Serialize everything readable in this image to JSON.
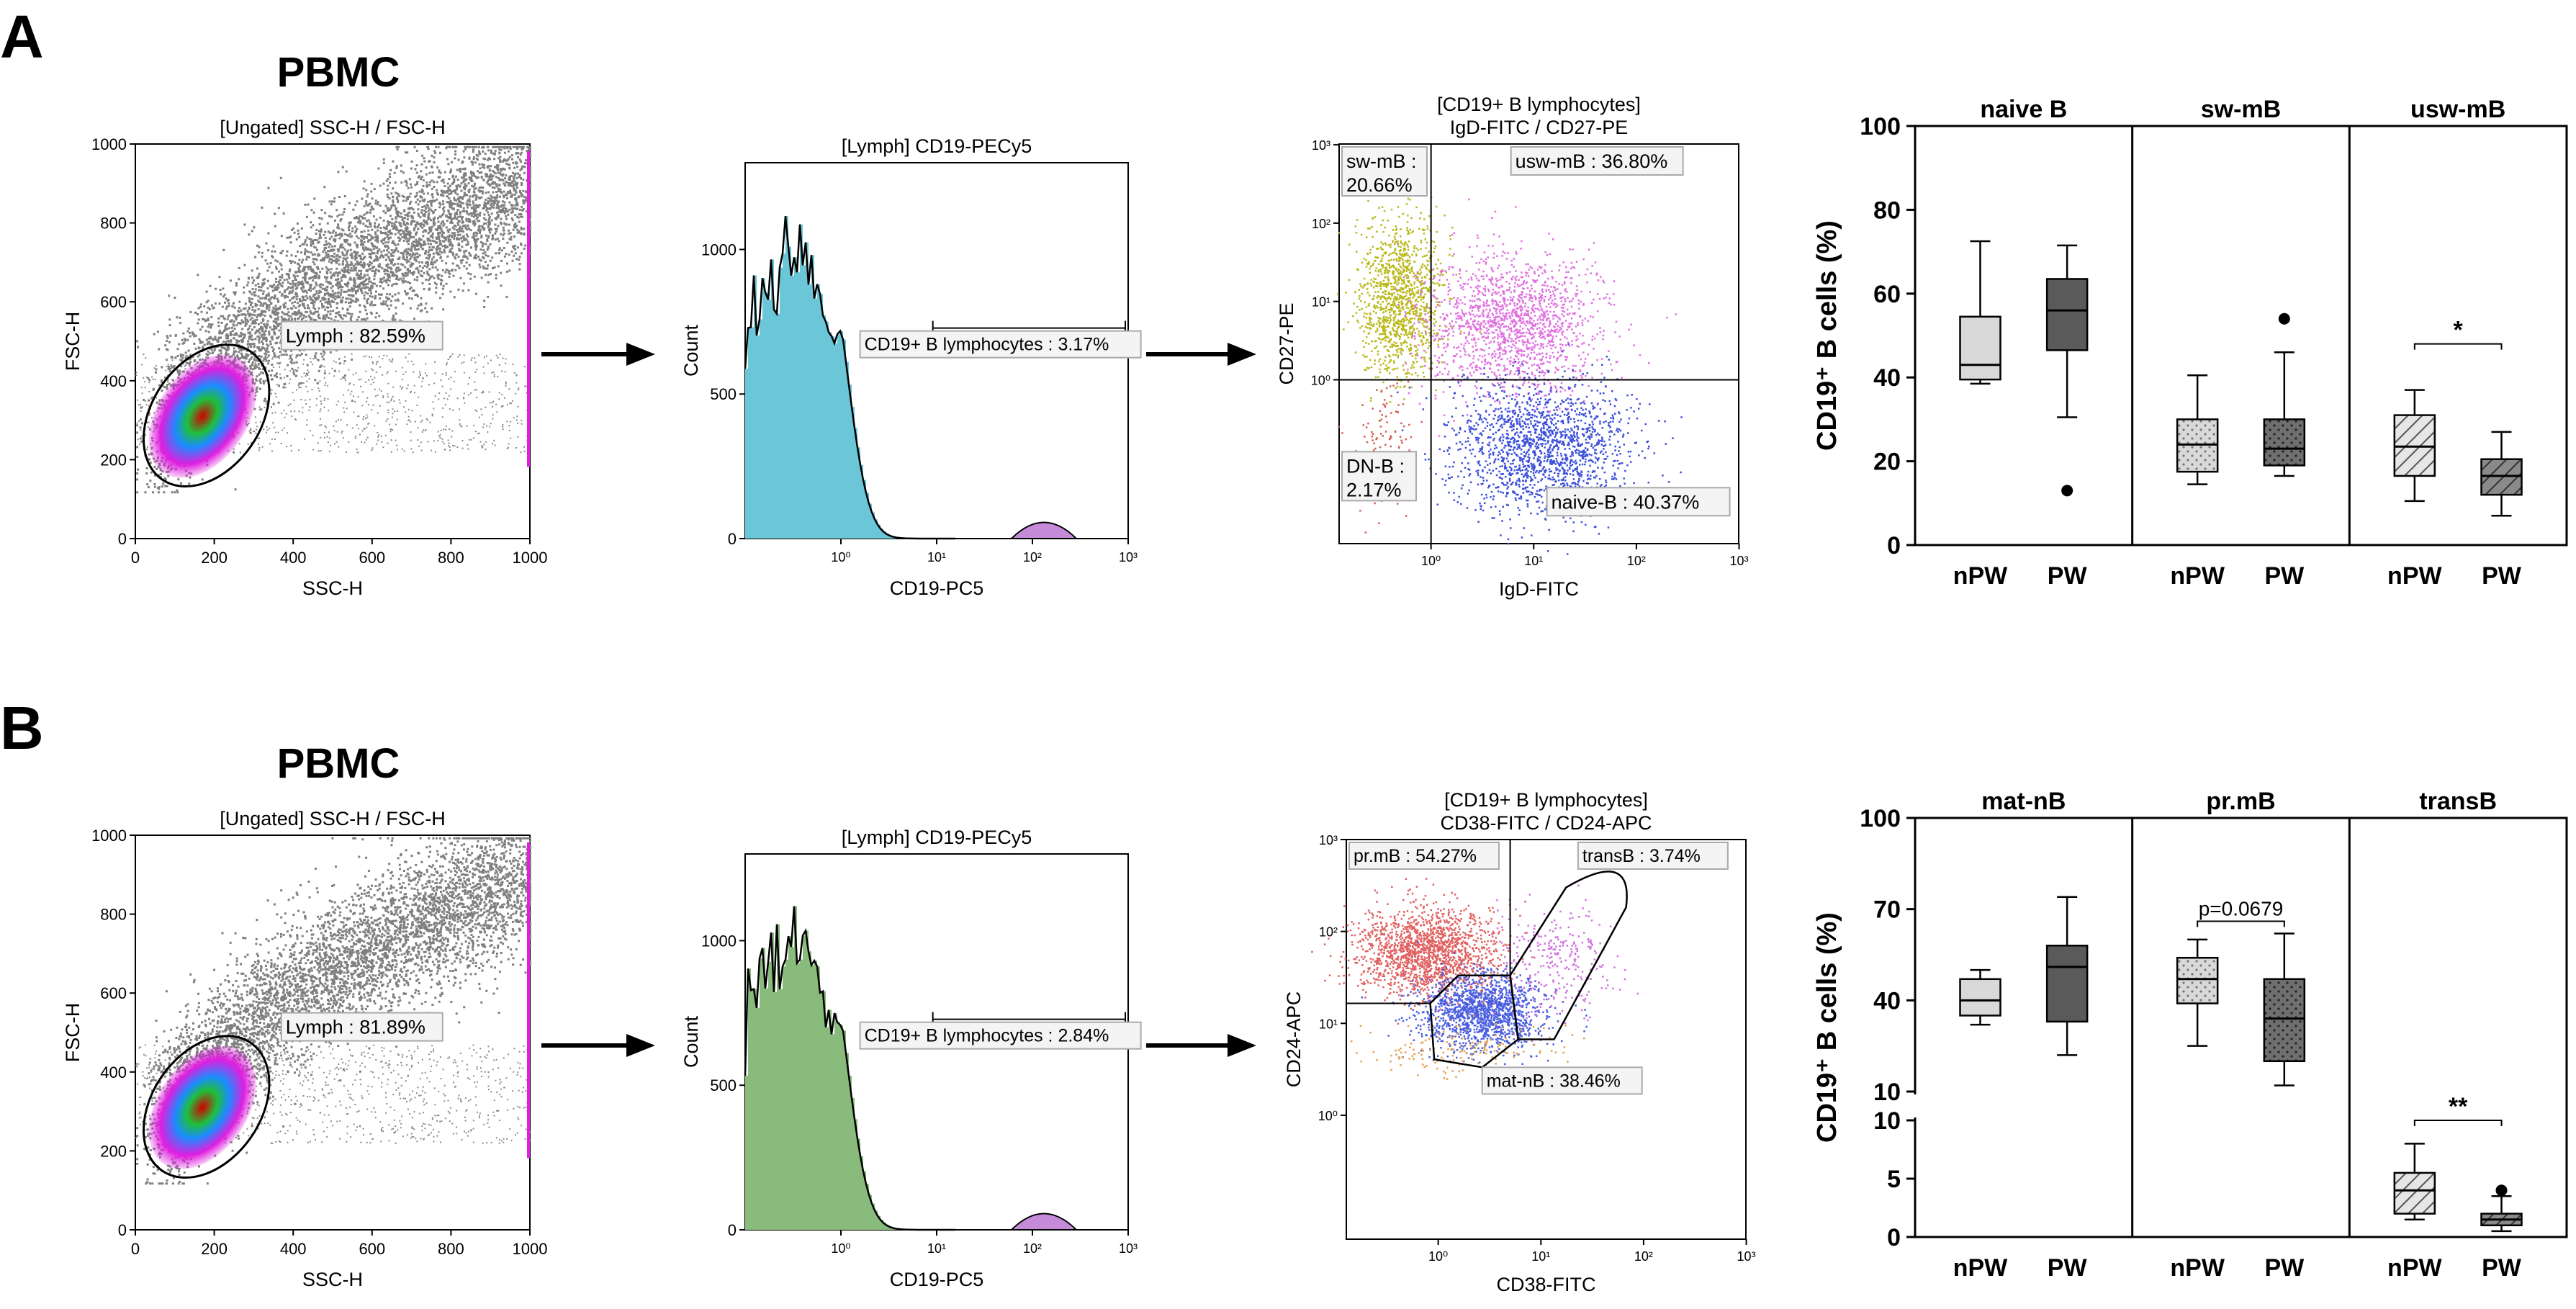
{
  "figure": {
    "panels": [
      {
        "letter": "A",
        "title": "PBMC",
        "scatter": {
          "title": "[Ungated] SSC-H / FSC-H",
          "xlabel": "SSC-H",
          "ylabel": "FSC-H",
          "xticks": [
            "0",
            "200",
            "400",
            "600",
            "800",
            "1000"
          ],
          "yticks": [
            "0",
            "200",
            "400",
            "600",
            "800",
            "1000"
          ],
          "gate_label": "Lymph : 82.59%"
        },
        "histogram": {
          "title": "[Lymph] CD19-PECy5",
          "xlabel": "CD19-PC5",
          "ylabel": "Count",
          "xticks": [
            "10⁰",
            "10¹",
            "10²",
            "10³"
          ],
          "yticks": [
            "0",
            "500",
            "1000"
          ],
          "gate_label": "CD19+ B lymphocytes : 3.17%",
          "fill": "#9dbfe6"
        },
        "quadrant": {
          "title_line1": "[CD19+ B lymphocytes]",
          "title_line2": "IgD-FITC / CD27-PE",
          "xlabel": "IgD-FITC",
          "ylabel": "CD27-PE",
          "xticks": [
            "10⁰",
            "10¹",
            "10²",
            "10³"
          ],
          "yticks": [
            "10⁰",
            "10¹",
            "10²",
            "10³"
          ],
          "gates": [
            {
              "line1": "sw-mB :",
              "line2": "20.66%"
            },
            {
              "line1": "usw-mB : 36.80%",
              "line2": ""
            },
            {
              "line1": "DN-B :",
              "line2": "2.17%"
            },
            {
              "line1": "naive-B : 40.37%",
              "line2": ""
            }
          ]
        },
        "boxplot": {
          "ylabel": "CD19⁺ B cells (%)",
          "yticks": [
            "0",
            "20",
            "40",
            "60",
            "80",
            "100"
          ],
          "groups": [
            "nPW",
            "PW"
          ],
          "facets": [
            {
              "title": "naive B",
              "sig": "",
              "boxes": [
                {
                  "min": 38.5,
                  "q1": 39.5,
                  "median": 43,
                  "q3": 54.5,
                  "max": 72.5,
                  "outliers": []
                },
                {
                  "min": 30.5,
                  "q1": 46.5,
                  "median": 56,
                  "q3": 63.5,
                  "max": 71.5,
                  "outliers": [
                    13
                  ]
                }
              ]
            },
            {
              "title": "sw-mB",
              "sig": "",
              "boxes": [
                {
                  "min": 14.5,
                  "q1": 17.5,
                  "median": 24,
                  "q3": 30,
                  "max": 40.5,
                  "outliers": []
                },
                {
                  "min": 16.5,
                  "q1": 19,
                  "median": 23,
                  "q3": 30,
                  "max": 46,
                  "outliers": [
                    54
                  ]
                }
              ]
            },
            {
              "title": "usw-mB",
              "sig": "*",
              "boxes": [
                {
                  "min": 10.5,
                  "q1": 16.5,
                  "median": 23.5,
                  "q3": 31,
                  "max": 37,
                  "outliers": []
                },
                {
                  "min": 7,
                  "q1": 12,
                  "median": 16.5,
                  "q3": 20.5,
                  "max": 27,
                  "outliers": []
                }
              ]
            }
          ]
        }
      },
      {
        "letter": "B",
        "title": "PBMC",
        "scatter": {
          "title": "[Ungated] SSC-H / FSC-H",
          "xlabel": "SSC-H",
          "ylabel": "FSC-H",
          "xticks": [
            "0",
            "200",
            "400",
            "600",
            "800",
            "1000"
          ],
          "yticks": [
            "0",
            "200",
            "400",
            "600",
            "800",
            "1000"
          ],
          "gate_label": "Lymph : 81.89%"
        },
        "histogram": {
          "title": "[Lymph] CD19-PECy5",
          "xlabel": "CD19-PC5",
          "ylabel": "Count",
          "xticks": [
            "10⁰",
            "10¹",
            "10²",
            "10³"
          ],
          "yticks": [
            "0",
            "500",
            "1000"
          ],
          "gate_label": "CD19+ B lymphocytes : 2.84%",
          "fill": "#d4a93f"
        },
        "quadrant": {
          "title_line1": "[CD19+ B lymphocytes]",
          "title_line2": "CD38-FITC / CD24-APC",
          "xlabel": "CD38-FITC",
          "ylabel": "CD24-APC",
          "xticks": [
            "10⁰",
            "10¹",
            "10²",
            "10³"
          ],
          "yticks": [
            "10⁰",
            "10¹",
            "10²",
            "10³"
          ],
          "gates": [
            {
              "line1": "pr.mB : 54.27%",
              "line2": ""
            },
            {
              "line1": "transB : 3.74%",
              "line2": ""
            },
            {
              "line1": "mat-nB : 38.46%",
              "line2": ""
            }
          ]
        },
        "boxplot": {
          "ylabel": "CD19⁺ B cells (%)",
          "yticks_upper": [
            "10",
            "40",
            "70",
            "100"
          ],
          "yticks_lower": [
            "0",
            "5",
            "10"
          ],
          "groups": [
            "nPW",
            "PW"
          ],
          "facets": [
            {
              "title": "mat-nB",
              "sig": "",
              "boxes": [
                {
                  "min": 32,
                  "q1": 35,
                  "median": 40,
                  "q3": 47,
                  "max": 50,
                  "outliers": []
                },
                {
                  "min": 22,
                  "q1": 33,
                  "median": 51,
                  "q3": 58,
                  "max": 74,
                  "outliers": []
                }
              ]
            },
            {
              "title": "pr.mB",
              "sig": "p=0.0679",
              "boxes": [
                {
                  "min": 25,
                  "q1": 39,
                  "median": 47,
                  "q3": 54,
                  "max": 60,
                  "outliers": []
                },
                {
                  "min": 12,
                  "q1": 20,
                  "median": 34,
                  "q3": 47,
                  "max": 62,
                  "outliers": []
                }
              ]
            },
            {
              "title": "transB",
              "sig": "**",
              "boxes": [
                {
                  "min": 1.5,
                  "q1": 2,
                  "median": 4,
                  "q3": 5.5,
                  "max": 8,
                  "outliers": []
                },
                {
                  "min": 0.5,
                  "q1": 1,
                  "median": 1.5,
                  "q3": 2,
                  "max": 3.5,
                  "outliers": [
                    4
                  ]
                }
              ]
            }
          ]
        }
      }
    ]
  },
  "chart_data": [
    {
      "type": "box",
      "title": "A: naive B / sw-mB / usw-mB",
      "ylabel": "CD19⁺ B cells (%)",
      "ylim": [
        0,
        100
      ],
      "categories": [
        "nPW",
        "PW"
      ],
      "series": [
        {
          "name": "naive B",
          "nPW": {
            "min": 38.5,
            "q1": 39.5,
            "median": 43,
            "q3": 54.5,
            "max": 72.5
          },
          "PW": {
            "min": 30.5,
            "q1": 46.5,
            "median": 56,
            "q3": 63.5,
            "max": 71.5,
            "outliers": [
              13
            ]
          }
        },
        {
          "name": "sw-mB",
          "nPW": {
            "min": 14.5,
            "q1": 17.5,
            "median": 24,
            "q3": 30,
            "max": 40.5
          },
          "PW": {
            "min": 16.5,
            "q1": 19,
            "median": 23,
            "q3": 30,
            "max": 46,
            "outliers": [
              54
            ]
          }
        },
        {
          "name": "usw-mB",
          "significance": "*",
          "nPW": {
            "min": 10.5,
            "q1": 16.5,
            "median": 23.5,
            "q3": 31,
            "max": 37
          },
          "PW": {
            "min": 7,
            "q1": 12,
            "median": 16.5,
            "q3": 20.5,
            "max": 27
          }
        }
      ]
    },
    {
      "type": "box",
      "title": "B: mat-nB / pr.mB / transB",
      "ylabel": "CD19⁺ B cells (%)",
      "ylim": [
        0,
        100
      ],
      "axis_break": [
        10,
        10
      ],
      "categories": [
        "nPW",
        "PW"
      ],
      "series": [
        {
          "name": "mat-nB",
          "nPW": {
            "min": 32,
            "q1": 35,
            "median": 40,
            "q3": 47,
            "max": 50
          },
          "PW": {
            "min": 22,
            "q1": 33,
            "median": 51,
            "q3": 58,
            "max": 74
          }
        },
        {
          "name": "pr.mB",
          "significance": "p=0.0679",
          "nPW": {
            "min": 25,
            "q1": 39,
            "median": 47,
            "q3": 54,
            "max": 60
          },
          "PW": {
            "min": 12,
            "q1": 20,
            "median": 34,
            "q3": 47,
            "max": 62
          }
        },
        {
          "name": "transB",
          "significance": "**",
          "nPW": {
            "min": 1.5,
            "q1": 2,
            "median": 4,
            "q3": 5.5,
            "max": 8
          },
          "PW": {
            "min": 0.5,
            "q1": 1,
            "median": 1.5,
            "q3": 2,
            "max": 3.5,
            "outliers": [
              4
            ]
          }
        }
      ]
    }
  ]
}
